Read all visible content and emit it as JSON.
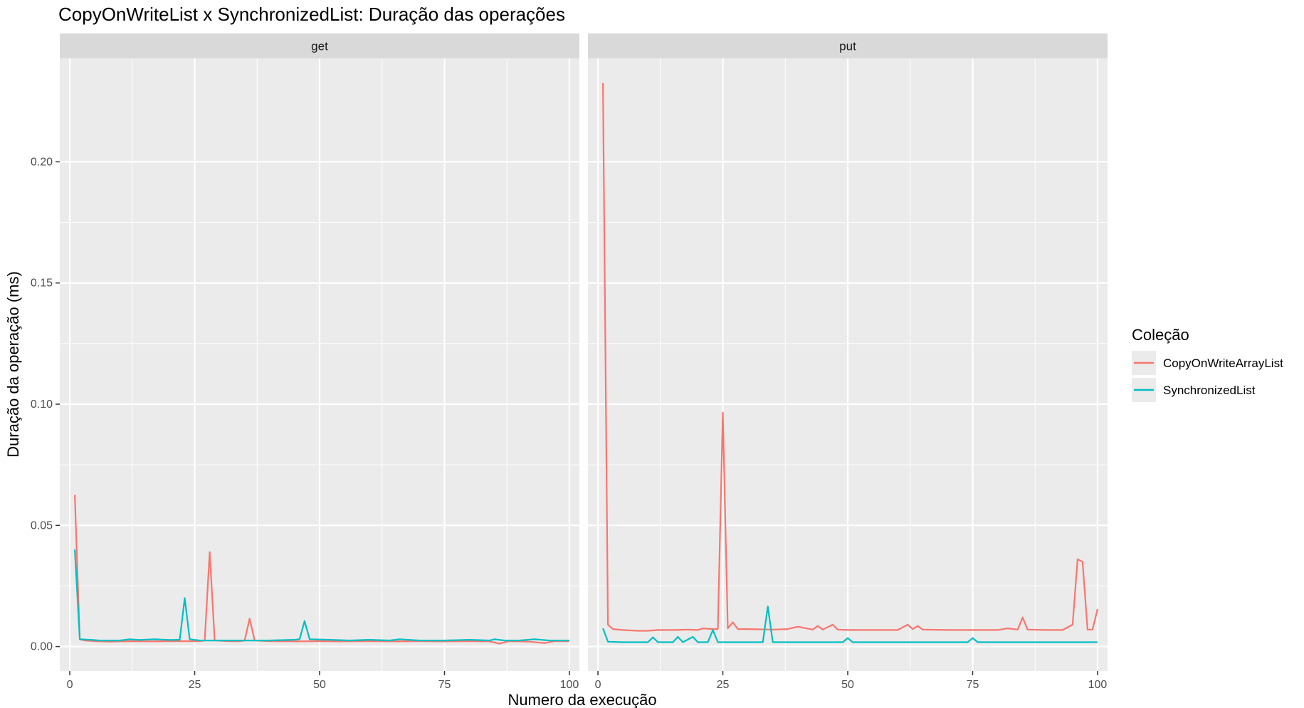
{
  "chart_data": {
    "type": "line",
    "title": "CopyOnWriteList x SynchronizedList: Duração das operações",
    "xlabel": "Numero da execução",
    "ylabel": "Duração da operação (ms)",
    "xlim": [
      -2,
      102
    ],
    "ylim": [
      -0.0101,
      0.2427
    ],
    "x_ticks": [
      0,
      25,
      50,
      75,
      100
    ],
    "y_ticks": [
      0.0,
      0.05,
      0.1,
      0.15,
      0.2
    ],
    "y_tick_labels": [
      "0.00",
      "0.05",
      "0.10",
      "0.15",
      "0.20"
    ],
    "grid": true,
    "legend": {
      "title": "Coleção",
      "position": "right",
      "entries": [
        {
          "name": "CopyOnWriteArrayList",
          "color": "#F8766D"
        },
        {
          "name": "SynchronizedList",
          "color": "#00BFC4"
        }
      ]
    },
    "panels": [
      {
        "label": "get",
        "series": [
          {
            "name": "CopyOnWriteArrayList",
            "color": "#F8766D",
            "points": [
              [
                1,
                0.0625
              ],
              [
                2,
                0.003
              ],
              [
                3,
                0.0025
              ],
              [
                5,
                0.0022
              ],
              [
                8,
                0.002
              ],
              [
                12,
                0.0022
              ],
              [
                16,
                0.0021
              ],
              [
                20,
                0.0022
              ],
              [
                24,
                0.0022
              ],
              [
                26,
                0.0022
              ],
              [
                27,
                0.0025
              ],
              [
                28,
                0.039
              ],
              [
                29,
                0.0025
              ],
              [
                32,
                0.0022
              ],
              [
                34,
                0.0022
              ],
              [
                35,
                0.0025
              ],
              [
                36,
                0.0115
              ],
              [
                37,
                0.0025
              ],
              [
                40,
                0.0022
              ],
              [
                45,
                0.0021
              ],
              [
                50,
                0.0022
              ],
              [
                55,
                0.0021
              ],
              [
                60,
                0.0022
              ],
              [
                65,
                0.0021
              ],
              [
                70,
                0.0022
              ],
              [
                75,
                0.0021
              ],
              [
                80,
                0.0022
              ],
              [
                84,
                0.0021
              ],
              [
                86,
                0.0012
              ],
              [
                88,
                0.0022
              ],
              [
                92,
                0.002
              ],
              [
                95,
                0.0014
              ],
              [
                97,
                0.0022
              ],
              [
                100,
                0.0022
              ]
            ]
          },
          {
            "name": "SynchronizedList",
            "color": "#00BFC4",
            "points": [
              [
                1,
                0.04
              ],
              [
                2,
                0.003
              ],
              [
                4,
                0.0028
              ],
              [
                6,
                0.0025
              ],
              [
                10,
                0.0025
              ],
              [
                12,
                0.003
              ],
              [
                14,
                0.0027
              ],
              [
                17,
                0.003
              ],
              [
                20,
                0.0027
              ],
              [
                22,
                0.0028
              ],
              [
                23,
                0.02
              ],
              [
                24,
                0.003
              ],
              [
                26,
                0.0025
              ],
              [
                28,
                0.0025
              ],
              [
                30,
                0.0025
              ],
              [
                35,
                0.0025
              ],
              [
                40,
                0.0025
              ],
              [
                45,
                0.0028
              ],
              [
                46,
                0.003
              ],
              [
                47,
                0.0105
              ],
              [
                48,
                0.003
              ],
              [
                52,
                0.0028
              ],
              [
                56,
                0.0025
              ],
              [
                60,
                0.0028
              ],
              [
                64,
                0.0025
              ],
              [
                66,
                0.003
              ],
              [
                70,
                0.0025
              ],
              [
                75,
                0.0025
              ],
              [
                80,
                0.0028
              ],
              [
                84,
                0.0025
              ],
              [
                85,
                0.003
              ],
              [
                87,
                0.0025
              ],
              [
                90,
                0.0025
              ],
              [
                93,
                0.003
              ],
              [
                96,
                0.0025
              ],
              [
                100,
                0.0025
              ]
            ]
          }
        ]
      },
      {
        "label": "put",
        "series": [
          {
            "name": "CopyOnWriteArrayList",
            "color": "#F8766D",
            "points": [
              [
                1,
                0.2325
              ],
              [
                2,
                0.009
              ],
              [
                3,
                0.0072
              ],
              [
                5,
                0.0068
              ],
              [
                8,
                0.0065
              ],
              [
                10,
                0.0065
              ],
              [
                12,
                0.0068
              ],
              [
                15,
                0.0068
              ],
              [
                18,
                0.007
              ],
              [
                20,
                0.0068
              ],
              [
                21,
                0.0075
              ],
              [
                23,
                0.0072
              ],
              [
                24,
                0.0072
              ],
              [
                25,
                0.0965
              ],
              [
                26,
                0.0075
              ],
              [
                27,
                0.01
              ],
              [
                28,
                0.0072
              ],
              [
                30,
                0.0072
              ],
              [
                35,
                0.007
              ],
              [
                38,
                0.0072
              ],
              [
                40,
                0.0082
              ],
              [
                43,
                0.007
              ],
              [
                44,
                0.0085
              ],
              [
                45,
                0.007
              ],
              [
                47,
                0.009
              ],
              [
                48,
                0.007
              ],
              [
                50,
                0.0068
              ],
              [
                55,
                0.0068
              ],
              [
                60,
                0.0068
              ],
              [
                62,
                0.009
              ],
              [
                63,
                0.0072
              ],
              [
                64,
                0.0085
              ],
              [
                65,
                0.007
              ],
              [
                70,
                0.0068
              ],
              [
                75,
                0.0068
              ],
              [
                80,
                0.0068
              ],
              [
                82,
                0.0075
              ],
              [
                84,
                0.007
              ],
              [
                85,
                0.012
              ],
              [
                86,
                0.007
              ],
              [
                90,
                0.0068
              ],
              [
                93,
                0.0068
              ],
              [
                95,
                0.009
              ],
              [
                96,
                0.036
              ],
              [
                97,
                0.035
              ],
              [
                98,
                0.007
              ],
              [
                99,
                0.007
              ],
              [
                100,
                0.0155
              ]
            ]
          },
          {
            "name": "SynchronizedList",
            "color": "#00BFC4",
            "points": [
              [
                1,
                0.0075
              ],
              [
                2,
                0.002
              ],
              [
                5,
                0.0018
              ],
              [
                10,
                0.0018
              ],
              [
                11,
                0.0038
              ],
              [
                12,
                0.0018
              ],
              [
                15,
                0.0018
              ],
              [
                16,
                0.004
              ],
              [
                17,
                0.0018
              ],
              [
                19,
                0.004
              ],
              [
                20,
                0.0018
              ],
              [
                22,
                0.0018
              ],
              [
                23,
                0.0068
              ],
              [
                24,
                0.0018
              ],
              [
                30,
                0.0018
              ],
              [
                33,
                0.0018
              ],
              [
                34,
                0.0165
              ],
              [
                35,
                0.0018
              ],
              [
                40,
                0.0018
              ],
              [
                45,
                0.0018
              ],
              [
                49,
                0.0018
              ],
              [
                50,
                0.0035
              ],
              [
                51,
                0.0018
              ],
              [
                55,
                0.0018
              ],
              [
                60,
                0.0018
              ],
              [
                65,
                0.0018
              ],
              [
                70,
                0.0018
              ],
              [
                74,
                0.0018
              ],
              [
                75,
                0.0035
              ],
              [
                76,
                0.0018
              ],
              [
                80,
                0.0018
              ],
              [
                85,
                0.0018
              ],
              [
                90,
                0.0018
              ],
              [
                95,
                0.0018
              ],
              [
                100,
                0.0018
              ]
            ]
          }
        ]
      }
    ]
  }
}
